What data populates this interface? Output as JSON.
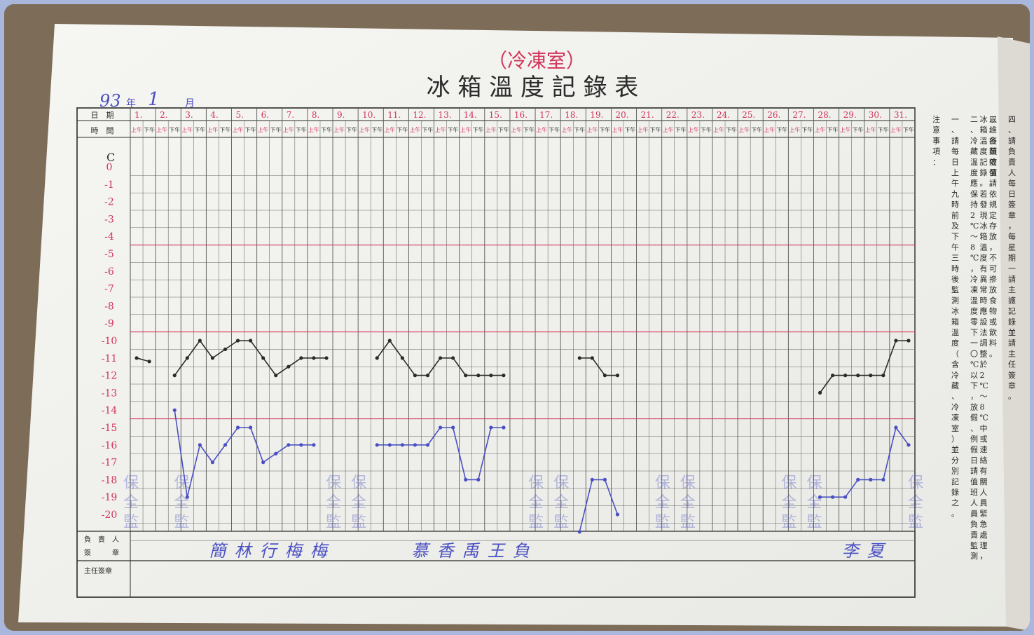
{
  "header": {
    "subtitle": "（冷凍室）",
    "title": "冰 箱 溫 度 記 錄 表",
    "handwritten_year": "93",
    "handwritten_month": "1",
    "year_unit": "年",
    "month_unit": "月"
  },
  "table": {
    "date_label": "日　期",
    "time_label": "時　間",
    "unit_label": "C",
    "am_label": "上午",
    "pm_label": "下午",
    "days": [
      "1.",
      "2.",
      "3.",
      "4.",
      "5.",
      "6.",
      "7.",
      "8.",
      "9.",
      "10.",
      "11.",
      "12.",
      "13.",
      "14.",
      "15.",
      "16.",
      "17.",
      "18.",
      "19.",
      "20.",
      "21.",
      "22.",
      "23.",
      "24.",
      "25.",
      "26.",
      "27.",
      "28.",
      "29.",
      "30.",
      "31."
    ],
    "temperatures": [
      "0",
      "-1",
      "-2",
      "-3",
      "-4",
      "-5",
      "-6",
      "-7",
      "-8",
      "-9",
      "-10",
      "-11",
      "-12",
      "-13",
      "-14",
      "-15",
      "-16",
      "-17",
      "-18",
      "-19",
      "-20"
    ],
    "footer_row_1": "負　責　人",
    "footer_row_2": "簽　　　章",
    "supervisor_label": "主任簽章"
  },
  "notes": {
    "heading": "注意事項：",
    "items": [
      "一、請每日上午九時前及下午三時後監測冰箱溫度（含冷藏、冷凍室）並分別記錄之。",
      "二、冷藏溫度應保持2℃～8℃，冷凍溫度零下一〇℃以下，放假、例假日請值班人員負責監測冰箱溫度記錄。若發現冰箱溫度有異常時應設法調整於2℃～8℃中或速絡有關人員緊急處理，以維疫苗效價。",
      "三、各類疫苗請依規定存放，不可摻放食物或飲料。",
      "四、請負責人每日簽章，每星期一請主護記錄並請主任簽章。"
    ]
  },
  "readings": {
    "upper": [
      [
        0,
        -11
      ],
      [
        1,
        -11.2
      ],
      [
        null,
        null
      ],
      [
        3,
        -12
      ],
      [
        4,
        -11
      ],
      [
        5,
        -10
      ],
      [
        6,
        -11
      ],
      [
        7,
        -10.5
      ],
      [
        8,
        -10
      ],
      [
        9,
        -10
      ],
      [
        10,
        -11
      ],
      [
        11,
        -12
      ],
      [
        12,
        -11.5
      ],
      [
        13,
        -11
      ],
      [
        14,
        -11
      ],
      [
        15,
        -11
      ],
      [
        null,
        null
      ],
      [
        19,
        -11
      ],
      [
        20,
        -10
      ],
      [
        21,
        -11
      ],
      [
        22,
        -12
      ],
      [
        23,
        -12
      ],
      [
        24,
        -11
      ],
      [
        25,
        -11
      ],
      [
        26,
        -12
      ],
      [
        27,
        -12
      ],
      [
        28,
        -12
      ],
      [
        29,
        -12
      ],
      [
        null,
        null
      ],
      [
        35,
        -11
      ],
      [
        36,
        -11
      ],
      [
        37,
        -12
      ],
      [
        38,
        -12
      ],
      [
        null,
        null
      ],
      [
        54,
        -13
      ],
      [
        55,
        -12
      ],
      [
        56,
        -12
      ],
      [
        57,
        -12
      ],
      [
        58,
        -12
      ],
      [
        59,
        -12
      ],
      [
        60,
        -10
      ],
      [
        61,
        -10
      ]
    ],
    "lower": [
      [
        3,
        -14
      ],
      [
        4,
        -19
      ],
      [
        5,
        -16
      ],
      [
        6,
        -17
      ],
      [
        7,
        -16
      ],
      [
        8,
        -15
      ],
      [
        9,
        -15
      ],
      [
        10,
        -17
      ],
      [
        11,
        -16.5
      ],
      [
        12,
        -16
      ],
      [
        13,
        -16
      ],
      [
        14,
        -16
      ],
      [
        null,
        null
      ],
      [
        19,
        -16
      ],
      [
        20,
        -16
      ],
      [
        21,
        -16
      ],
      [
        22,
        -16
      ],
      [
        23,
        -16
      ],
      [
        24,
        -15
      ],
      [
        25,
        -15
      ],
      [
        26,
        -18
      ],
      [
        27,
        -18
      ],
      [
        28,
        -15
      ],
      [
        29,
        -15
      ],
      [
        null,
        null
      ],
      [
        35,
        -21
      ],
      [
        36,
        -18
      ],
      [
        37,
        -18
      ],
      [
        38,
        -20
      ],
      [
        null,
        null
      ],
      [
        54,
        -19
      ],
      [
        55,
        -19
      ],
      [
        56,
        -19
      ],
      [
        57,
        -18
      ],
      [
        58,
        -18
      ],
      [
        59,
        -18
      ],
      [
        60,
        -15
      ],
      [
        61,
        -16
      ]
    ]
  },
  "signatures": {
    "stamp_text": [
      "保",
      "全",
      "監"
    ],
    "names": [
      "簡",
      "林",
      "行",
      "梅",
      "梅",
      "慕",
      "香",
      "禹",
      "王",
      "負",
      "李",
      "夏"
    ]
  },
  "colors": {
    "ink_red": "#d2345a",
    "ink_blue": "#4a50c2",
    "ink_black": "#2b2b2b",
    "paper": "#f4f5f1"
  }
}
